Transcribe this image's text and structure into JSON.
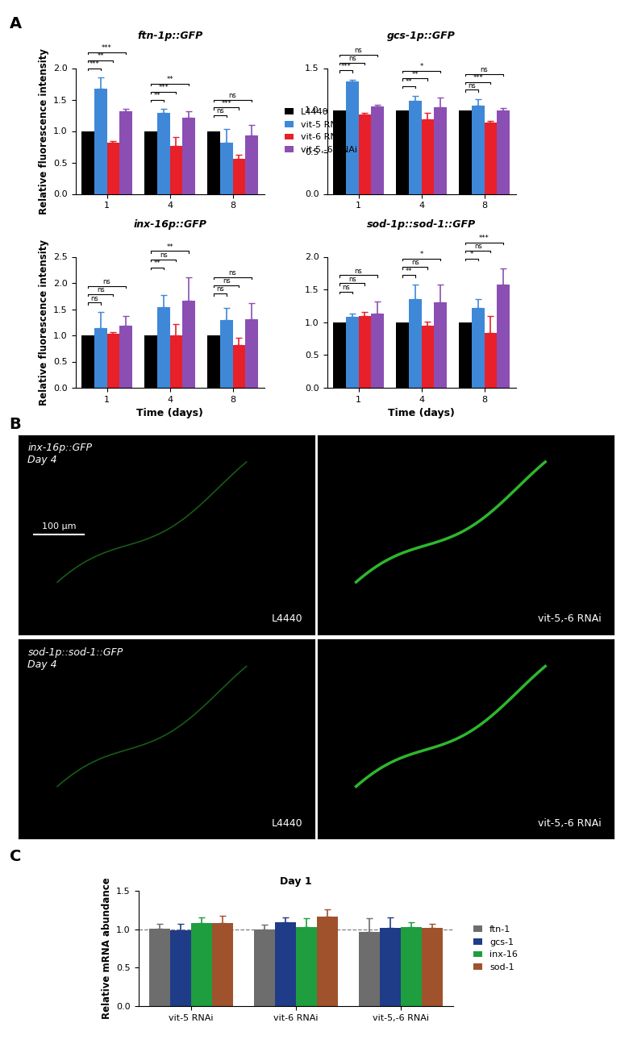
{
  "chart_data": [
    {
      "type": "bar",
      "panel": "A",
      "title": "ftn-1p::GFP",
      "ylabel": "Relative fluorescence intensity",
      "categories": [
        "1",
        "4",
        "8"
      ],
      "ylim": [
        0,
        2.0
      ],
      "yticks": [
        {
          "value": 0,
          "label": "0.0"
        },
        {
          "value": 0.5,
          "label": "0.5"
        },
        {
          "value": 1.0,
          "label": "1.0"
        },
        {
          "value": 1.5,
          "label": "1.5"
        },
        {
          "value": 2.0,
          "label": "2.0"
        }
      ],
      "legend": "right",
      "series": [
        {
          "name": "L4440",
          "color": "#000000",
          "values": [
            1,
            1,
            1
          ]
        },
        {
          "name": "vit-5 RNAi",
          "color": "#3f88d8",
          "values": [
            1.67,
            1.29,
            0.81
          ],
          "errors": [
            0.18,
            0.06,
            0.22
          ],
          "significance": [
            "***",
            "**",
            "ns"
          ]
        },
        {
          "name": "vit-6 RNAi",
          "color": "#e8202a",
          "values": [
            0.81,
            0.76,
            0.56
          ],
          "errors": [
            0.03,
            0.14,
            0.06
          ],
          "significance": [
            "**",
            "***",
            "***"
          ]
        },
        {
          "name": "vit-5,-6 RNAi",
          "color": "#8b4fb3",
          "values": [
            1.32,
            1.21,
            0.93
          ],
          "errors": [
            0.03,
            0.1,
            0.17
          ],
          "significance": [
            "***",
            "**",
            "ns"
          ]
        }
      ]
    },
    {
      "type": "bar",
      "title": "gcs-1p::GFP",
      "categories": [
        "1",
        "4",
        "8"
      ],
      "ylim": [
        0,
        1.5
      ],
      "yticks": [
        {
          "value": 0,
          "label": "0.0"
        },
        {
          "value": 0.5,
          "label": "0.5"
        },
        {
          "value": 1.0,
          "label": "1.0"
        },
        {
          "value": 1.5,
          "label": "1.5"
        }
      ],
      "series": [
        {
          "name": "L4440",
          "color": "#000000",
          "values": [
            1,
            1,
            1
          ]
        },
        {
          "name": "vit-5 RNAi",
          "color": "#3f88d8",
          "values": [
            1.34,
            1.11,
            1.05
          ],
          "errors": [
            0.02,
            0.06,
            0.08
          ],
          "significance": [
            "***",
            "**",
            "ns"
          ]
        },
        {
          "name": "vit-6 RNAi",
          "color": "#e8202a",
          "values": [
            0.95,
            0.89,
            0.85
          ],
          "errors": [
            0.02,
            0.08,
            0.02
          ],
          "significance": [
            "ns",
            "**",
            "***"
          ]
        },
        {
          "name": "vit-5,-6 RNAi",
          "color": "#8b4fb3",
          "values": [
            1.04,
            1.03,
            1.0
          ],
          "errors": [
            0.02,
            0.12,
            0.02
          ],
          "significance": [
            "ns",
            "*",
            "ns"
          ]
        }
      ]
    },
    {
      "type": "bar",
      "title": "inx-16p::GFP",
      "ylabel": "Relative fluorescence intensity",
      "xlabel": "Time (days)",
      "categories": [
        "1",
        "4",
        "8"
      ],
      "ylim": [
        0,
        2.5
      ],
      "yticks": [
        {
          "value": 0,
          "label": "0.0"
        },
        {
          "value": 0.5,
          "label": "0.5"
        },
        {
          "value": 1.0,
          "label": "1.0"
        },
        {
          "value": 1.5,
          "label": "1.5"
        },
        {
          "value": 2.0,
          "label": "2.0"
        },
        {
          "value": 2.5,
          "label": "2.5"
        }
      ],
      "series": [
        {
          "name": "L4440",
          "color": "#000000",
          "values": [
            1,
            1,
            1
          ]
        },
        {
          "name": "vit-5 RNAi",
          "color": "#3f88d8",
          "values": [
            1.14,
            1.54,
            1.3
          ],
          "errors": [
            0.3,
            0.23,
            0.22
          ],
          "significance": [
            "ns",
            "**",
            "ns"
          ]
        },
        {
          "name": "vit-6 RNAi",
          "color": "#e8202a",
          "values": [
            1.03,
            1.0,
            0.82
          ],
          "errors": [
            0.03,
            0.22,
            0.13
          ],
          "significance": [
            "ns",
            "ns",
            "ns"
          ]
        },
        {
          "name": "vit-5,-6 RNAi",
          "color": "#8b4fb3",
          "values": [
            1.19,
            1.66,
            1.31
          ],
          "errors": [
            0.18,
            0.45,
            0.3
          ],
          "significance": [
            "ns",
            "**",
            "ns"
          ]
        }
      ]
    },
    {
      "type": "bar",
      "title": "sod-1p::sod-1::GFP",
      "xlabel": "Time (days)",
      "categories": [
        "1",
        "4",
        "8"
      ],
      "ylim": [
        0,
        2.0
      ],
      "yticks": [
        {
          "value": 0,
          "label": "0.0"
        },
        {
          "value": 0.5,
          "label": "0.5"
        },
        {
          "value": 1.0,
          "label": "1.0"
        },
        {
          "value": 1.5,
          "label": "1.5"
        },
        {
          "value": 2.0,
          "label": "2.0"
        }
      ],
      "series": [
        {
          "name": "L4440",
          "color": "#000000",
          "values": [
            1,
            1,
            1
          ]
        },
        {
          "name": "vit-5 RNAi",
          "color": "#3f88d8",
          "values": [
            1.08,
            1.35,
            1.22
          ],
          "errors": [
            0.05,
            0.22,
            0.13
          ],
          "significance": [
            "ns",
            "**",
            "*"
          ]
        },
        {
          "name": "vit-6 RNAi",
          "color": "#e8202a",
          "values": [
            1.1,
            0.95,
            0.84
          ],
          "errors": [
            0.06,
            0.06,
            0.25
          ],
          "significance": [
            "ns",
            "ns",
            "ns"
          ]
        },
        {
          "name": "vit-5,-6 RNAi",
          "color": "#8b4fb3",
          "values": [
            1.13,
            1.3,
            1.57
          ],
          "errors": [
            0.19,
            0.27,
            0.25
          ],
          "significance": [
            "ns",
            "*",
            "***"
          ]
        }
      ]
    },
    {
      "type": "bar",
      "panel": "C",
      "title": "Day 1",
      "ylabel": "Relative mRNA abundance",
      "categories": [
        "vit-5 RNAi",
        "vit-6 RNAi",
        "vit-5,-6 RNAi"
      ],
      "ylim": [
        0,
        1.5
      ],
      "yticks": [
        {
          "value": 0,
          "label": "0.0"
        },
        {
          "value": 0.5,
          "label": "0.5"
        },
        {
          "value": 1.0,
          "label": "1.0"
        },
        {
          "value": 1.5,
          "label": "1.5"
        }
      ],
      "reference_line": 1.0,
      "legend": "right",
      "series": [
        {
          "name": "ftn-1",
          "color": "#6d6d6d",
          "values": [
            1.01,
            1.0,
            0.97
          ],
          "errors": [
            0.06,
            0.06,
            0.17
          ]
        },
        {
          "name": "gcs-1",
          "color": "#1f3c88",
          "values": [
            0.99,
            1.09,
            1.02
          ],
          "errors": [
            0.08,
            0.06,
            0.13
          ]
        },
        {
          "name": "inx-16",
          "color": "#1e9e3e",
          "values": [
            1.08,
            1.03,
            1.03
          ],
          "errors": [
            0.07,
            0.11,
            0.06
          ]
        },
        {
          "name": "sod-1",
          "color": "#a0522d",
          "values": [
            1.08,
            1.16,
            1.02
          ],
          "errors": [
            0.09,
            0.1,
            0.05
          ]
        }
      ]
    }
  ],
  "images": {
    "panel": "B",
    "panels": [
      {
        "reporter": "inx-16p::GFP",
        "day": "Day 4",
        "condition": "L4440",
        "scale_bar": "100 µm"
      },
      {
        "condition": "vit-5,-6 RNAi"
      },
      {
        "reporter": "sod-1p::sod-1::GFP",
        "day": "Day 4",
        "condition": "L4440"
      },
      {
        "condition": "vit-5,-6 RNAi"
      }
    ]
  }
}
